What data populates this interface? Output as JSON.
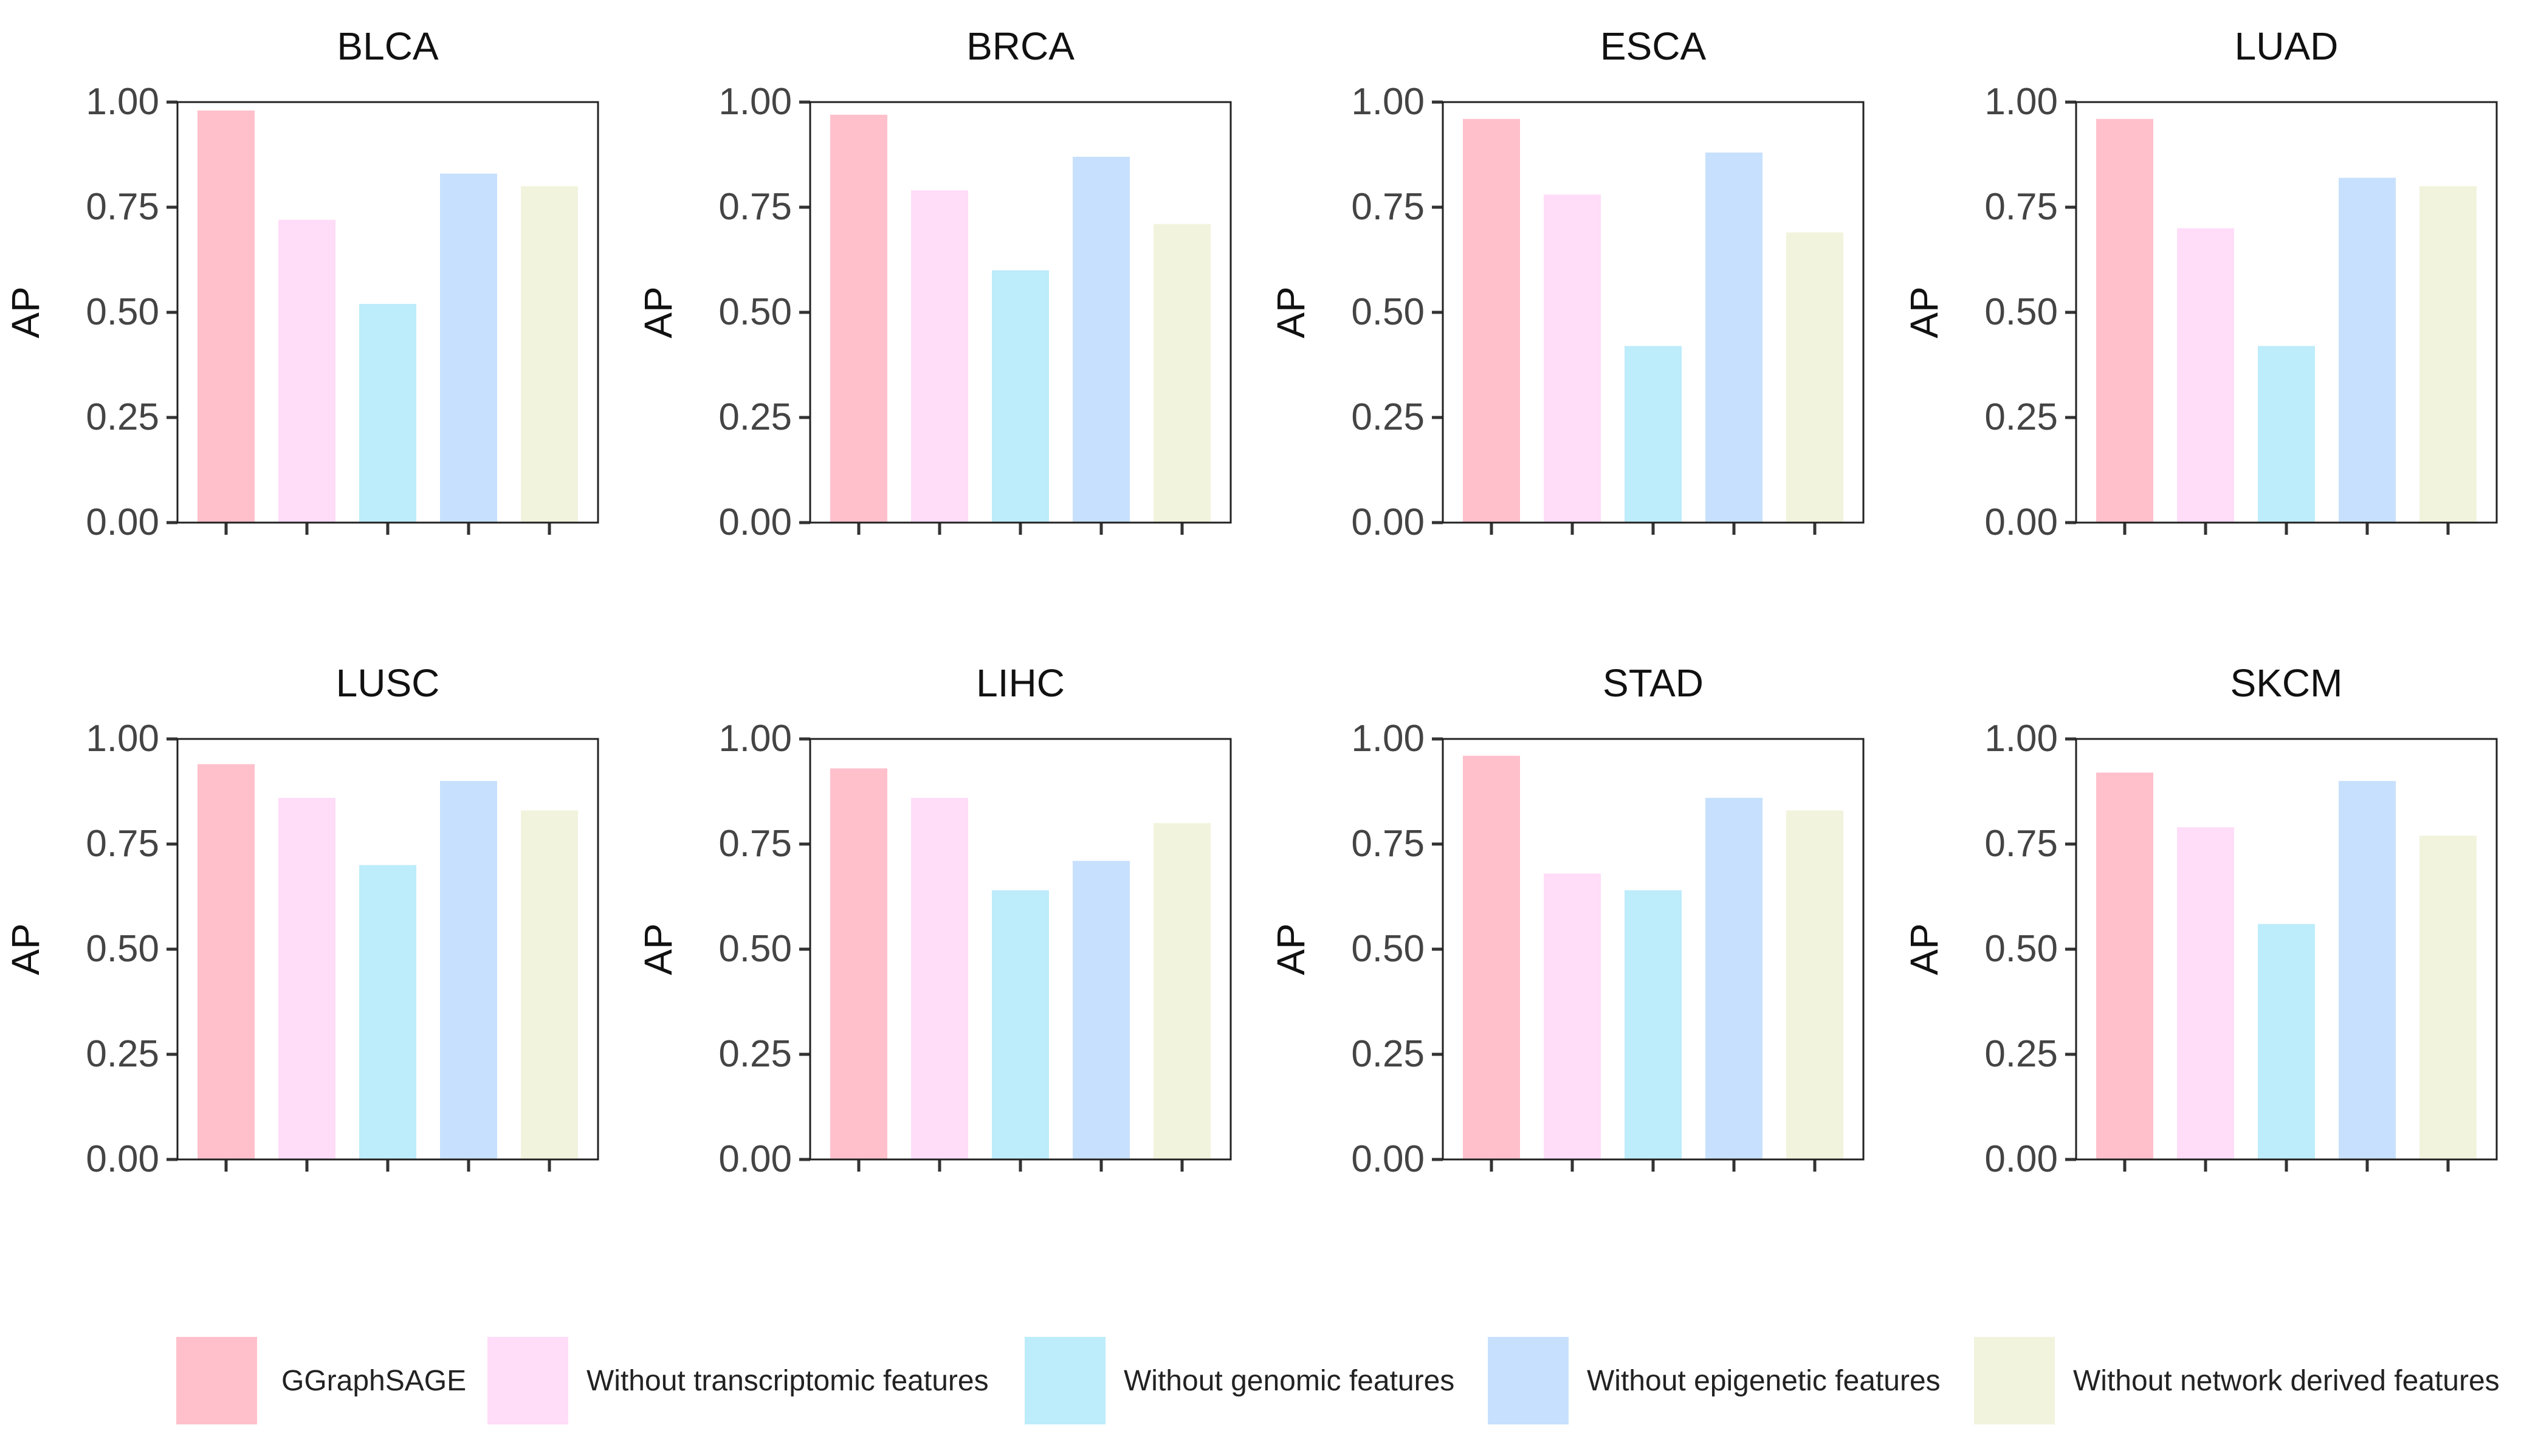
{
  "chart_data": [
    {
      "type": "bar",
      "title": "BLCA",
      "ylabel": "AP",
      "xlabel": "",
      "categories": [
        "GGraphSAGE",
        "Without transcriptomic features",
        "Without genomic features",
        "Without epigenetic features",
        "Without network derived features"
      ],
      "values": [
        0.98,
        0.72,
        0.52,
        0.83,
        0.8
      ],
      "ylim": [
        0,
        1
      ],
      "yticks": [
        "0.00",
        "0.25",
        "0.50",
        "0.75",
        "1.00"
      ]
    },
    {
      "type": "bar",
      "title": "BRCA",
      "ylabel": "AP",
      "xlabel": "",
      "categories": [
        "GGraphSAGE",
        "Without transcriptomic features",
        "Without genomic features",
        "Without epigenetic features",
        "Without network derived features"
      ],
      "values": [
        0.97,
        0.79,
        0.6,
        0.87,
        0.71
      ],
      "ylim": [
        0,
        1
      ],
      "yticks": [
        "0.00",
        "0.25",
        "0.50",
        "0.75",
        "1.00"
      ]
    },
    {
      "type": "bar",
      "title": "ESCA",
      "ylabel": "AP",
      "xlabel": "",
      "categories": [
        "GGraphSAGE",
        "Without transcriptomic features",
        "Without genomic features",
        "Without epigenetic features",
        "Without network derived features"
      ],
      "values": [
        0.96,
        0.78,
        0.42,
        0.88,
        0.69
      ],
      "ylim": [
        0,
        1
      ],
      "yticks": [
        "0.00",
        "0.25",
        "0.50",
        "0.75",
        "1.00"
      ]
    },
    {
      "type": "bar",
      "title": "LUAD",
      "ylabel": "AP",
      "xlabel": "",
      "categories": [
        "GGraphSAGE",
        "Without transcriptomic features",
        "Without genomic features",
        "Without epigenetic features",
        "Without network derived features"
      ],
      "values": [
        0.96,
        0.7,
        0.42,
        0.82,
        0.8
      ],
      "ylim": [
        0,
        1
      ],
      "yticks": [
        "0.00",
        "0.25",
        "0.50",
        "0.75",
        "1.00"
      ]
    },
    {
      "type": "bar",
      "title": "LUSC",
      "ylabel": "AP",
      "xlabel": "",
      "categories": [
        "GGraphSAGE",
        "Without transcriptomic features",
        "Without genomic features",
        "Without epigenetic features",
        "Without network derived features"
      ],
      "values": [
        0.94,
        0.86,
        0.7,
        0.9,
        0.83
      ],
      "ylim": [
        0,
        1
      ],
      "yticks": [
        "0.00",
        "0.25",
        "0.50",
        "0.75",
        "1.00"
      ]
    },
    {
      "type": "bar",
      "title": "LIHC",
      "ylabel": "AP",
      "xlabel": "",
      "categories": [
        "GGraphSAGE",
        "Without transcriptomic features",
        "Without genomic features",
        "Without epigenetic features",
        "Without network derived features"
      ],
      "values": [
        0.93,
        0.86,
        0.64,
        0.71,
        0.8
      ],
      "ylim": [
        0,
        1
      ],
      "yticks": [
        "0.00",
        "0.25",
        "0.50",
        "0.75",
        "1.00"
      ]
    },
    {
      "type": "bar",
      "title": "STAD",
      "ylabel": "AP",
      "xlabel": "",
      "categories": [
        "GGraphSAGE",
        "Without transcriptomic features",
        "Without genomic features",
        "Without epigenetic features",
        "Without network derived features"
      ],
      "values": [
        0.96,
        0.68,
        0.64,
        0.86,
        0.83
      ],
      "ylim": [
        0,
        1
      ],
      "yticks": [
        "0.00",
        "0.25",
        "0.50",
        "0.75",
        "1.00"
      ]
    },
    {
      "type": "bar",
      "title": "SKCM",
      "ylabel": "AP",
      "xlabel": "",
      "categories": [
        "GGraphSAGE",
        "Without transcriptomic features",
        "Without genomic features",
        "Without epigenetic features",
        "Without network derived features"
      ],
      "values": [
        0.92,
        0.79,
        0.56,
        0.9,
        0.77
      ],
      "ylim": [
        0,
        1
      ],
      "yticks": [
        "0.00",
        "0.25",
        "0.50",
        "0.75",
        "1.00"
      ]
    }
  ],
  "legend": {
    "position": "bottom",
    "items": [
      {
        "label": "GGraphSAGE",
        "color": "#ffc0cb"
      },
      {
        "label": "Without transcriptomic features",
        "color": "#ffdcf8"
      },
      {
        "label": "Without genomic features",
        "color": "#bdecfb"
      },
      {
        "label": "Without epigenetic features",
        "color": "#c7e0fd"
      },
      {
        "label": "Without network derived features",
        "color": "#f2f3dd"
      }
    ]
  }
}
